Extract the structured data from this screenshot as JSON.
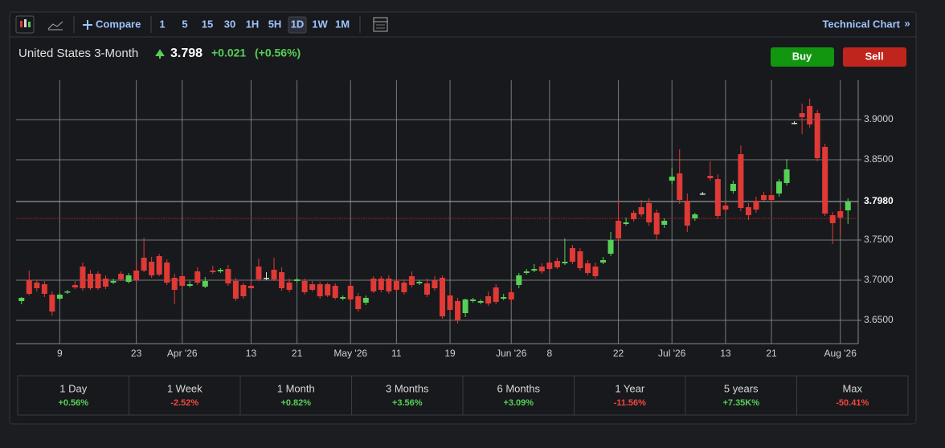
{
  "toolbar": {
    "compare": "Compare",
    "intervals": [
      "1",
      "5",
      "15",
      "30",
      "1H",
      "5H",
      "1D",
      "1W",
      "1M"
    ],
    "active_interval": "1D",
    "technical_chart": "Technical Chart",
    "more": "»"
  },
  "header": {
    "name": "United States 3-Month",
    "price": "3.798",
    "change": "+0.021",
    "change_pct": "(+0.56%)"
  },
  "buttons": {
    "buy": "Buy",
    "sell": "Sell"
  },
  "chart_data": {
    "type": "candlestick",
    "categories": [
      null,
      null,
      null,
      null,
      null,
      "9",
      null,
      null,
      null,
      null,
      null,
      null,
      null,
      null,
      null,
      "23",
      null,
      null,
      null,
      null,
      null,
      "Apr '26",
      null,
      null,
      null,
      null,
      null,
      null,
      null,
      null,
      "13",
      null,
      null,
      null,
      null,
      null,
      "21",
      null,
      null,
      null,
      null,
      null,
      null,
      "May '26",
      null,
      null,
      null,
      null,
      null,
      "11",
      null,
      null,
      null,
      null,
      null,
      null,
      "19",
      null,
      null,
      null,
      null,
      null,
      null,
      null,
      "Jun '26",
      null,
      null,
      null,
      null,
      "8",
      null,
      null,
      null,
      null,
      null,
      null,
      null,
      null,
      "22",
      null,
      null,
      null,
      null,
      null,
      null,
      "Jul '26",
      null,
      null,
      null,
      null,
      null,
      null,
      "13",
      null,
      null,
      null,
      null,
      null,
      "21",
      null,
      null,
      null,
      null,
      null,
      null,
      null,
      null,
      "Aug '26",
      null
    ],
    "ohlc": [
      [
        3.674,
        3.679,
        3.67,
        3.678
      ],
      [
        3.7,
        3.712,
        3.681,
        3.683
      ],
      [
        3.697,
        3.701,
        3.686,
        3.69
      ],
      [
        3.695,
        3.699,
        3.679,
        3.683
      ],
      [
        3.682,
        3.686,
        3.656,
        3.661
      ],
      [
        3.677,
        3.684,
        3.675,
        3.682
      ],
      [
        3.685,
        3.688,
        3.683,
        3.686
      ],
      [
        3.694,
        3.699,
        3.689,
        3.691
      ],
      [
        3.717,
        3.722,
        3.687,
        3.69
      ],
      [
        3.708,
        3.713,
        3.688,
        3.69
      ],
      [
        3.708,
        3.711,
        3.688,
        3.69
      ],
      [
        3.702,
        3.706,
        3.689,
        3.692
      ],
      [
        3.697,
        3.702,
        3.695,
        3.699
      ],
      [
        3.708,
        3.711,
        3.699,
        3.701
      ],
      [
        3.698,
        3.709,
        3.696,
        3.706
      ],
      [
        3.712,
        3.722,
        3.698,
        3.7
      ],
      [
        3.728,
        3.753,
        3.71,
        3.712
      ],
      [
        3.723,
        3.729,
        3.703,
        3.706
      ],
      [
        3.73,
        3.733,
        3.705,
        3.707
      ],
      [
        3.722,
        3.726,
        3.694,
        3.697
      ],
      [
        3.703,
        3.708,
        3.67,
        3.688
      ],
      [
        3.705,
        3.709,
        3.69,
        3.693
      ],
      [
        3.693,
        3.699,
        3.691,
        3.695
      ],
      [
        3.711,
        3.716,
        3.694,
        3.697
      ],
      [
        3.692,
        3.704,
        3.69,
        3.699
      ],
      [
        3.712,
        3.718,
        3.708,
        3.71
      ],
      [
        3.711,
        3.715,
        3.709,
        3.713
      ],
      [
        3.714,
        3.719,
        3.693,
        3.696
      ],
      [
        3.699,
        3.703,
        3.674,
        3.677
      ],
      [
        3.694,
        3.697,
        3.677,
        3.68
      ],
      [
        3.693,
        3.698,
        3.688,
        3.69
      ],
      [
        3.717,
        3.727,
        3.699,
        3.701
      ],
      [
        3.703,
        3.71,
        3.7,
        3.703
      ],
      [
        3.713,
        3.728,
        3.699,
        3.701
      ],
      [
        3.71,
        3.716,
        3.687,
        3.69
      ],
      [
        3.697,
        3.702,
        3.685,
        3.688
      ],
      [
        3.699,
        3.703,
        3.697,
        3.701
      ],
      [
        3.699,
        3.702,
        3.682,
        3.685
      ],
      [
        3.695,
        3.699,
        3.686,
        3.688
      ],
      [
        3.695,
        3.698,
        3.677,
        3.68
      ],
      [
        3.695,
        3.697,
        3.679,
        3.681
      ],
      [
        3.693,
        3.696,
        3.676,
        3.678
      ],
      [
        3.677,
        3.681,
        3.675,
        3.679
      ],
      [
        3.693,
        3.697,
        3.672,
        3.676
      ],
      [
        3.68,
        3.684,
        3.661,
        3.664
      ],
      [
        3.672,
        3.681,
        3.669,
        3.678
      ],
      [
        3.702,
        3.705,
        3.684,
        3.686
      ],
      [
        3.702,
        3.705,
        3.685,
        3.688
      ],
      [
        3.702,
        3.706,
        3.683,
        3.686
      ],
      [
        3.699,
        3.703,
        3.685,
        3.688
      ],
      [
        3.697,
        3.701,
        3.682,
        3.685
      ],
      [
        3.705,
        3.711,
        3.691,
        3.694
      ],
      [
        3.696,
        3.7,
        3.694,
        3.698
      ],
      [
        3.696,
        3.702,
        3.679,
        3.682
      ],
      [
        3.7,
        3.705,
        3.687,
        3.69
      ],
      [
        3.703,
        3.706,
        3.652,
        3.655
      ],
      [
        3.681,
        3.685,
        3.659,
        3.663
      ],
      [
        3.674,
        3.678,
        3.646,
        3.65
      ],
      [
        3.659,
        3.677,
        3.654,
        3.676
      ],
      [
        3.674,
        3.678,
        3.672,
        3.676
      ],
      [
        3.672,
        3.676,
        3.67,
        3.674
      ],
      [
        3.68,
        3.686,
        3.668,
        3.671
      ],
      [
        3.691,
        3.695,
        3.67,
        3.673
      ],
      [
        3.677,
        3.683,
        3.675,
        3.679
      ],
      [
        3.685,
        3.69,
        3.672,
        3.676
      ],
      [
        3.694,
        3.709,
        3.69,
        3.706
      ],
      [
        3.709,
        3.714,
        3.707,
        3.711
      ],
      [
        3.712,
        3.72,
        3.71,
        3.714
      ],
      [
        3.717,
        3.721,
        3.708,
        3.711
      ],
      [
        3.722,
        3.726,
        3.712,
        3.714
      ],
      [
        3.724,
        3.728,
        3.714,
        3.716
      ],
      [
        3.721,
        3.752,
        3.719,
        3.723
      ],
      [
        3.74,
        3.744,
        3.72,
        3.723
      ],
      [
        3.736,
        3.74,
        3.712,
        3.715
      ],
      [
        3.721,
        3.725,
        3.706,
        3.709
      ],
      [
        3.717,
        3.722,
        3.702,
        3.705
      ],
      [
        3.722,
        3.729,
        3.72,
        3.725
      ],
      [
        3.733,
        3.76,
        3.73,
        3.75
      ],
      [
        3.774,
        3.8,
        3.748,
        3.752
      ],
      [
        3.77,
        3.778,
        3.768,
        3.772
      ],
      [
        3.784,
        3.787,
        3.773,
        3.776
      ],
      [
        3.791,
        3.8,
        3.779,
        3.782
      ],
      [
        3.796,
        3.802,
        3.768,
        3.772
      ],
      [
        3.784,
        3.788,
        3.75,
        3.757
      ],
      [
        3.769,
        3.777,
        3.765,
        3.774
      ],
      [
        3.824,
        3.84,
        3.82,
        3.829
      ],
      [
        3.833,
        3.863,
        3.795,
        3.8
      ],
      [
        3.799,
        3.808,
        3.76,
        3.768
      ],
      [
        3.777,
        3.784,
        3.774,
        3.782
      ],
      [
        3.808,
        3.81,
        3.806,
        3.808
      ],
      [
        3.83,
        3.848,
        3.824,
        3.827
      ],
      [
        3.826,
        3.832,
        3.776,
        3.78
      ],
      [
        3.793,
        3.8,
        3.784,
        3.788
      ],
      [
        3.811,
        3.824,
        3.808,
        3.82
      ],
      [
        3.857,
        3.868,
        3.786,
        3.79
      ],
      [
        3.791,
        3.796,
        3.775,
        3.781
      ],
      [
        3.799,
        3.804,
        3.784,
        3.788
      ],
      [
        3.806,
        3.81,
        3.797,
        3.8
      ],
      [
        3.806,
        3.812,
        3.796,
        3.8
      ],
      [
        3.808,
        3.826,
        3.804,
        3.823
      ],
      [
        3.821,
        3.851,
        3.818,
        3.838
      ],
      [
        3.896,
        3.898,
        3.894,
        3.896
      ],
      [
        3.908,
        3.92,
        3.882,
        3.903
      ],
      [
        3.917,
        3.926,
        3.89,
        3.894
      ],
      [
        3.908,
        3.912,
        3.848,
        3.852
      ],
      [
        3.866,
        3.87,
        3.78,
        3.783
      ],
      [
        3.781,
        3.785,
        3.745,
        3.771
      ],
      [
        3.786,
        3.791,
        3.756,
        3.778
      ],
      [
        3.787,
        3.802,
        3.77,
        3.798
      ]
    ],
    "up_color": "#56d156",
    "down_color": "#e03a36",
    "flat_color": "#d8d8d8",
    "ylim": [
      3.621,
      3.949
    ],
    "yticks": [
      {
        "value": 3.65,
        "label": "3.6500"
      },
      {
        "value": 3.7,
        "label": "3.7000"
      },
      {
        "value": 3.75,
        "label": "3.7500"
      },
      {
        "value": 3.85,
        "label": "3.8500"
      },
      {
        "value": 3.9,
        "label": "3.9000"
      }
    ],
    "current_price": {
      "value": 3.798,
      "label": "3.7980"
    },
    "previous_close": 3.777,
    "grid": true
  },
  "performance": [
    {
      "period": "1 Day",
      "change": "+0.56%"
    },
    {
      "period": "1 Week",
      "change": "-2.52%"
    },
    {
      "period": "1 Month",
      "change": "+0.82%"
    },
    {
      "period": "3 Months",
      "change": "+3.56%"
    },
    {
      "period": "6 Months",
      "change": "+3.09%"
    },
    {
      "period": "1 Year",
      "change": "-11.56%"
    },
    {
      "period": "5 years",
      "change": "+7.35K%"
    },
    {
      "period": "Max",
      "change": "-50.41%"
    }
  ]
}
